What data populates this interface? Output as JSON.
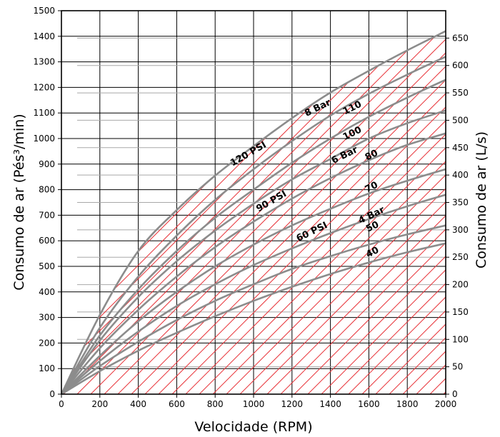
{
  "chart_data": {
    "type": "line",
    "xlabel": "Velocidade (RPM)",
    "ylabel_left": "Consumo de ar (Pés³/min)",
    "ylabel_right": "Consumo de ar (L/s)",
    "xlim": [
      0,
      2000
    ],
    "ylim_left": [
      0,
      1500
    ],
    "ylim_right": [
      0,
      700
    ],
    "x_ticks": [
      "0",
      "200",
      "400",
      "600",
      "800",
      "1000",
      "1200",
      "1400",
      "1600",
      "1800",
      "2000"
    ],
    "y_left_ticks": [
      "0",
      "100",
      "200",
      "300",
      "400",
      "500",
      "600",
      "700",
      "800",
      "900",
      "1000",
      "1100",
      "1200",
      "1300",
      "1400",
      "1500"
    ],
    "y_right_ticks": [
      "0",
      "50",
      "100",
      "150",
      "200",
      "250",
      "300",
      "350",
      "400",
      "450",
      "500",
      "550",
      "600",
      "650"
    ],
    "grid": true,
    "series": [
      {
        "name": "120 PSI",
        "x": [
          0,
          200,
          400,
          600,
          800,
          1000,
          1200,
          1400,
          1600,
          1800,
          2000
        ],
        "y": [
          0,
          310,
          560,
          720,
          855,
          970,
          1080,
          1180,
          1265,
          1345,
          1420
        ]
      },
      {
        "name": "110",
        "x": [
          0,
          200,
          400,
          600,
          800,
          1000,
          1200,
          1400,
          1600,
          1800,
          2000
        ],
        "y": [
          0,
          260,
          460,
          620,
          760,
          880,
          990,
          1090,
          1175,
          1250,
          1320
        ]
      },
      {
        "name": "100",
        "x": [
          0,
          200,
          400,
          600,
          800,
          1000,
          1200,
          1400,
          1600,
          1800,
          2000
        ],
        "y": [
          0,
          230,
          410,
          560,
          690,
          800,
          905,
          1000,
          1085,
          1160,
          1230
        ]
      },
      {
        "name": "90 PSI",
        "x": [
          0,
          200,
          400,
          600,
          800,
          1000,
          1200,
          1400,
          1600,
          1800,
          2000
        ],
        "y": [
          0,
          210,
          380,
          520,
          640,
          745,
          840,
          920,
          1000,
          1060,
          1110
        ]
      },
      {
        "name": "80",
        "x": [
          0,
          200,
          400,
          600,
          800,
          1000,
          1200,
          1400,
          1600,
          1800,
          2000
        ],
        "y": [
          0,
          180,
          330,
          460,
          575,
          675,
          765,
          845,
          915,
          975,
          1020
        ]
      },
      {
        "name": "70",
        "x": [
          0,
          200,
          400,
          600,
          800,
          1000,
          1200,
          1400,
          1600,
          1800,
          2000
        ],
        "y": [
          0,
          150,
          285,
          400,
          500,
          585,
          660,
          725,
          785,
          835,
          880
        ]
      },
      {
        "name": "60 PSI",
        "x": [
          0,
          200,
          400,
          600,
          800,
          1000,
          1200,
          1400,
          1600,
          1800,
          2000
        ],
        "y": [
          0,
          130,
          245,
          345,
          430,
          505,
          570,
          630,
          685,
          735,
          780
        ]
      },
      {
        "name": "50",
        "x": [
          0,
          200,
          400,
          600,
          800,
          1000,
          1200,
          1400,
          1600,
          1800,
          2000
        ],
        "y": [
          0,
          110,
          205,
          290,
          365,
          430,
          490,
          540,
          585,
          625,
          660
        ]
      },
      {
        "name": "40",
        "x": [
          0,
          200,
          400,
          600,
          800,
          1000,
          1200,
          1400,
          1600,
          1800,
          2000
        ],
        "y": [
          0,
          90,
          170,
          240,
          305,
          365,
          420,
          470,
          515,
          555,
          590
        ]
      }
    ],
    "annotations": [
      {
        "text": "8 Bar",
        "x": 1340,
        "y": 1110,
        "angle": -26
      },
      {
        "text": "110",
        "x": 1520,
        "y": 1110,
        "angle": -26
      },
      {
        "text": "120 PSI",
        "x": 980,
        "y": 930,
        "angle": -30
      },
      {
        "text": "100",
        "x": 1520,
        "y": 1010,
        "angle": -26
      },
      {
        "text": "6 Bar",
        "x": 1480,
        "y": 925,
        "angle": -26
      },
      {
        "text": "80",
        "x": 1620,
        "y": 925,
        "angle": -26
      },
      {
        "text": "90 PSI",
        "x": 1100,
        "y": 745,
        "angle": -30
      },
      {
        "text": "70",
        "x": 1620,
        "y": 800,
        "angle": -26
      },
      {
        "text": "4 Bar",
        "x": 1620,
        "y": 690,
        "angle": -26
      },
      {
        "text": "50",
        "x": 1625,
        "y": 645,
        "angle": -26
      },
      {
        "text": "60 PSI",
        "x": 1310,
        "y": 625,
        "angle": -26
      },
      {
        "text": "40",
        "x": 1625,
        "y": 545,
        "angle": -26
      }
    ],
    "colors": {
      "curve": "#8c8c8c",
      "hatch": "#e8343a",
      "grid": "#000000"
    }
  }
}
